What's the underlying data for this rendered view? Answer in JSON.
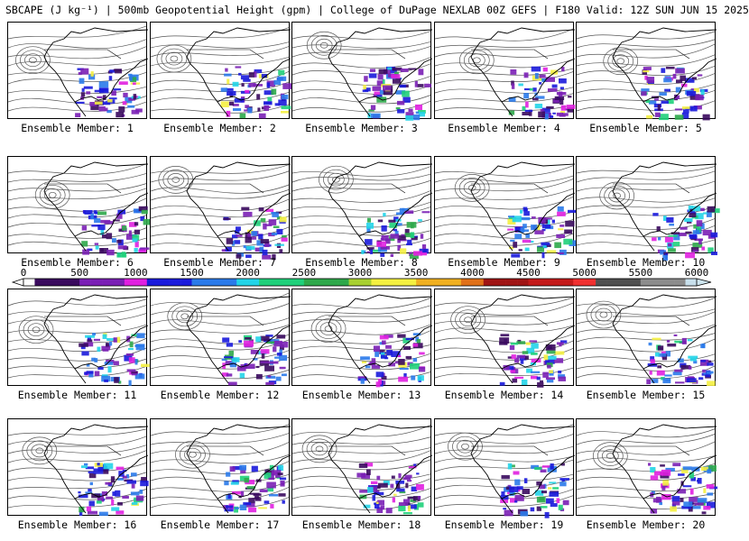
{
  "header": {
    "title": "SBCAPE (J kg⁻¹) | 500mb Geopotential Height (gpm) | College of DuPage NEXLAB 00Z GEFS | F180 Valid: 12Z SUN JUN 15 2025"
  },
  "chart_data": {
    "type": "heatmap",
    "title": "SBCAPE (J kg⁻¹) | 500mb Geopotential Height (gpm) | College of DuPage NEXLAB 00Z GEFS | F180 Valid: 12Z SUN JUN 15 2025",
    "panels": [
      {
        "label": "Ensemble Member: 1"
      },
      {
        "label": "Ensemble Member: 2"
      },
      {
        "label": "Ensemble Member: 3"
      },
      {
        "label": "Ensemble Member: 4"
      },
      {
        "label": "Ensemble Member: 5"
      },
      {
        "label": "Ensemble Member: 6"
      },
      {
        "label": "Ensemble Member: 7"
      },
      {
        "label": "Ensemble Member: 8"
      },
      {
        "label": "Ensemble Member: 9"
      },
      {
        "label": "Ensemble Member: 10"
      },
      {
        "label": "Ensemble Member: 11"
      },
      {
        "label": "Ensemble Member: 12"
      },
      {
        "label": "Ensemble Member: 13"
      },
      {
        "label": "Ensemble Member: 14"
      },
      {
        "label": "Ensemble Member: 15"
      },
      {
        "label": "Ensemble Member: 16"
      },
      {
        "label": "Ensemble Member: 17"
      },
      {
        "label": "Ensemble Member: 18"
      },
      {
        "label": "Ensemble Member: 19"
      },
      {
        "label": "Ensemble Member: 20"
      }
    ],
    "colorbar": {
      "min": 0,
      "max": 6000,
      "step": 100,
      "tick_labels": [
        "0",
        "500",
        "1000",
        "1500",
        "2000",
        "2500",
        "3000",
        "3500",
        "4000",
        "4500",
        "5000",
        "5500",
        "6000"
      ],
      "stops": [
        {
          "value": 0,
          "color": "#ffffff"
        },
        {
          "value": 100,
          "color": "#3a0a5e"
        },
        {
          "value": 500,
          "color": "#7a1fb5"
        },
        {
          "value": 900,
          "color": "#e020e0"
        },
        {
          "value": 1100,
          "color": "#1a1adc"
        },
        {
          "value": 1500,
          "color": "#2a7aea"
        },
        {
          "value": 1900,
          "color": "#22d4e8"
        },
        {
          "value": 2100,
          "color": "#1fd07a"
        },
        {
          "value": 2500,
          "color": "#2ea84a"
        },
        {
          "value": 2900,
          "color": "#a8d030"
        },
        {
          "value": 3100,
          "color": "#f4f040"
        },
        {
          "value": 3500,
          "color": "#f0b020"
        },
        {
          "value": 3900,
          "color": "#e07018"
        },
        {
          "value": 4100,
          "color": "#a01414"
        },
        {
          "value": 4500,
          "color": "#c41a1a"
        },
        {
          "value": 4900,
          "color": "#f03030"
        },
        {
          "value": 5100,
          "color": "#505050"
        },
        {
          "value": 5500,
          "color": "#8c8c8c"
        },
        {
          "value": 5900,
          "color": "#c8e0ec"
        },
        {
          "value": 6000,
          "color": "#cfe6f0"
        }
      ]
    }
  }
}
